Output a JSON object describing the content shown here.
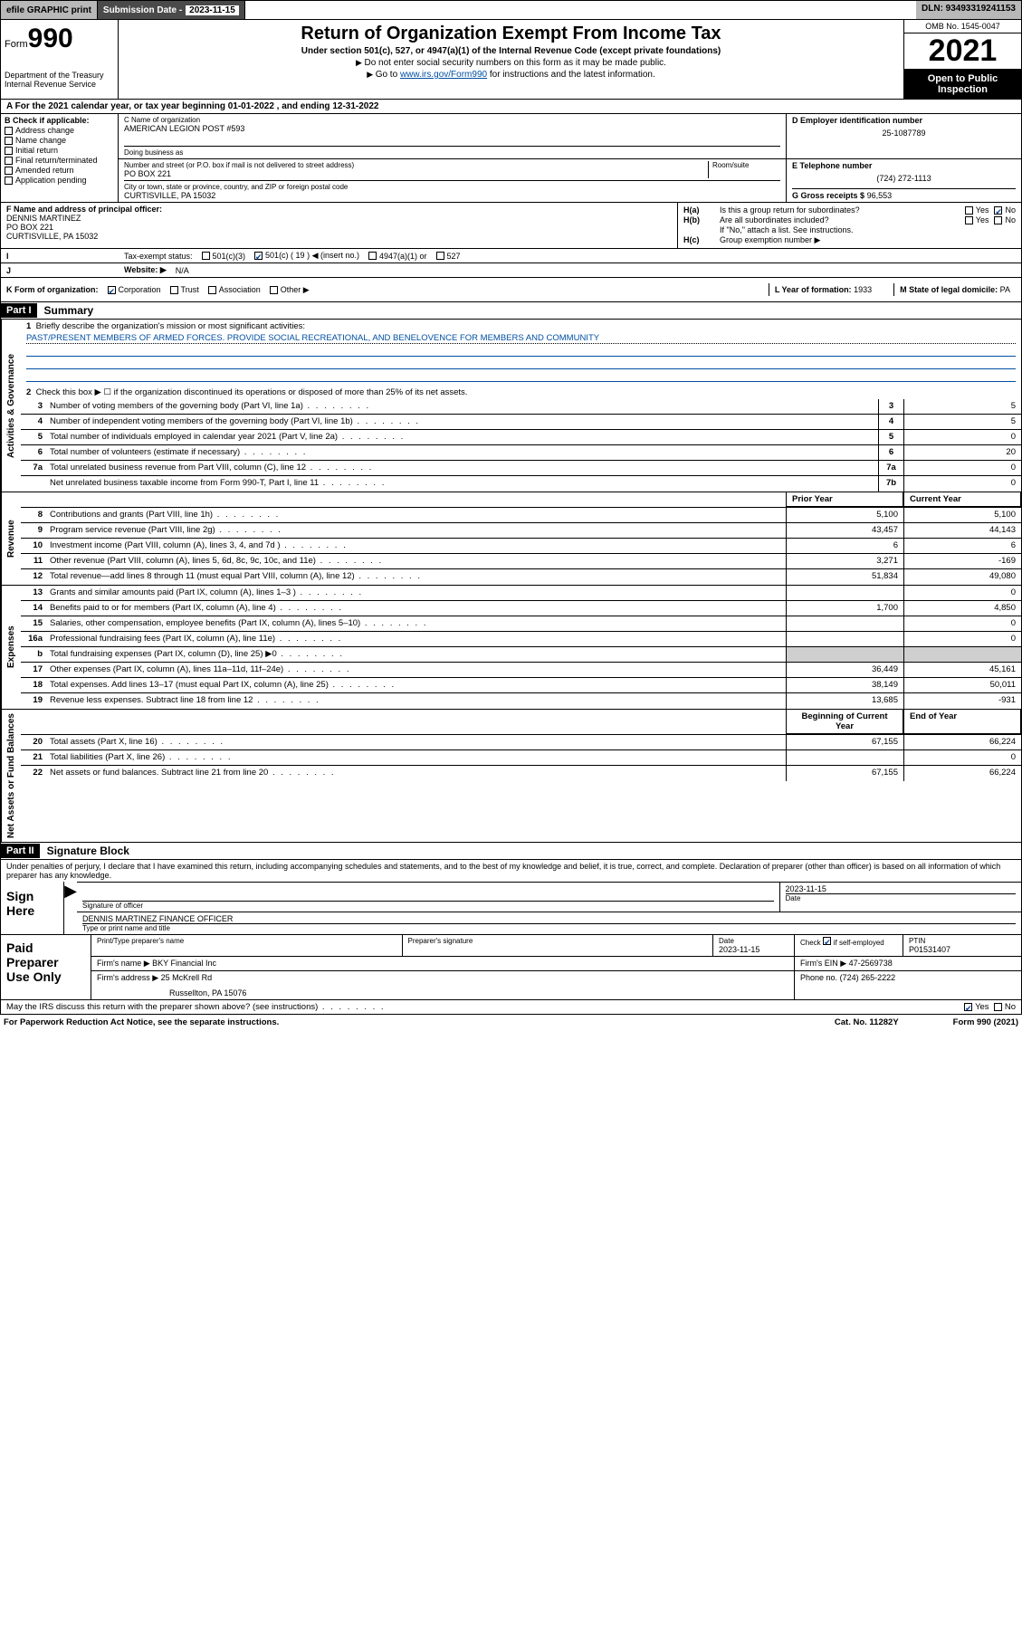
{
  "colors": {
    "link": "#004fa3",
    "black": "#000000",
    "grey_bar": "#b8b8b8",
    "grey_shade": "#cfcfcf",
    "check_blue": "#0040a0"
  },
  "topbar": {
    "efile": "efile GRAPHIC print",
    "sub_label": "Submission Date - ",
    "sub_date": "2023-11-15",
    "dln": "DLN: 93493319241153"
  },
  "header": {
    "form_word": "Form",
    "form_num": "990",
    "dept": "Department of the Treasury",
    "irs": "Internal Revenue Service",
    "title": "Return of Organization Exempt From Income Tax",
    "sub": "Under section 501(c), 527, or 4947(a)(1) of the Internal Revenue Code (except private foundations)",
    "note1": "Do not enter social security numbers on this form as it may be made public.",
    "note2_pre": "Go to ",
    "note2_link": "www.irs.gov/Form990",
    "note2_post": " for instructions and the latest information.",
    "omb": "OMB No. 1545-0047",
    "year": "2021",
    "open": "Open to Public Inspection"
  },
  "row_a": {
    "text": "A For the 2021 calendar year, or tax year beginning 01-01-2022   , and ending 12-31-2022"
  },
  "col_b": {
    "label": "B Check if applicable:",
    "items": [
      "Address change",
      "Name change",
      "Initial return",
      "Final return/terminated",
      "Amended return",
      "Application pending"
    ]
  },
  "col_c": {
    "name_lbl": "C Name of organization",
    "name": "AMERICAN LEGION POST #593",
    "dba_lbl": "Doing business as",
    "addr_lbl": "Number and street (or P.O. box if mail is not delivered to street address)",
    "room_lbl": "Room/suite",
    "addr": "PO BOX 221",
    "city_lbl": "City or town, state or province, country, and ZIP or foreign postal code",
    "city": "CURTISVILLE, PA  15032"
  },
  "col_d": {
    "ein_lbl": "D Employer identification number",
    "ein": "25-1087789",
    "tel_lbl": "E Telephone number",
    "tel": "(724) 272-1113",
    "gross_lbl": "G Gross receipts $",
    "gross": "96,553"
  },
  "row_f": {
    "lbl": "F  Name and address of principal officer:",
    "name": "DENNIS MARTINEZ",
    "addr1": "PO BOX 221",
    "addr2": "CURTISVILLE, PA  15032",
    "ha": "Is this a group return for subordinates?",
    "hb": "Are all subordinates included?",
    "hb_note": "If \"No,\" attach a list. See instructions.",
    "hc": "Group exemption number ▶",
    "ha_yes": "Yes",
    "ha_no": "No",
    "hb_yes": "Yes",
    "hb_no": "No"
  },
  "row_i": {
    "lbl": "Tax-exempt status:",
    "opts": [
      "501(c)(3)",
      "501(c) ( 19 ) ◀ (insert no.)",
      "4947(a)(1) or",
      "527"
    ]
  },
  "row_j": {
    "lbl": "Website: ▶",
    "val": "N/A"
  },
  "row_k": {
    "lbl": "K Form of organization:",
    "opts": [
      "Corporation",
      "Trust",
      "Association",
      "Other ▶"
    ],
    "l_lbl": "L Year of formation:",
    "l_val": "1933",
    "m_lbl": "M State of legal domicile:",
    "m_val": "PA"
  },
  "part1": {
    "tag": "Part I",
    "title": "Summary"
  },
  "mission": {
    "lbl": "Briefly describe the organization's mission or most significant activities:",
    "text": "PAST/PRESENT MEMBERS OF ARMED FORCES. PROVIDE SOCIAL RECREATIONAL, AND BENELOVENCE FOR MEMBERS AND COMMUNITY"
  },
  "line2": "Check this box ▶ ☐  if the organization discontinued its operations or disposed of more than 25% of its net assets.",
  "gov": [
    {
      "n": "3",
      "t": "Number of voting members of the governing body (Part VI, line 1a)",
      "b": "3",
      "v": "5"
    },
    {
      "n": "4",
      "t": "Number of independent voting members of the governing body (Part VI, line 1b)",
      "b": "4",
      "v": "5"
    },
    {
      "n": "5",
      "t": "Total number of individuals employed in calendar year 2021 (Part V, line 2a)",
      "b": "5",
      "v": "0"
    },
    {
      "n": "6",
      "t": "Total number of volunteers (estimate if necessary)",
      "b": "6",
      "v": "20"
    },
    {
      "n": "7a",
      "t": "Total unrelated business revenue from Part VIII, column (C), line 12",
      "b": "7a",
      "v": "0"
    },
    {
      "n": "",
      "t": "Net unrelated business taxable income from Form 990-T, Part I, line 11",
      "b": "7b",
      "v": "0"
    }
  ],
  "col_hdr": {
    "prior": "Prior Year",
    "curr": "Current Year",
    "beg": "Beginning of Current Year",
    "end": "End of Year"
  },
  "rev": [
    {
      "n": "8",
      "t": "Contributions and grants (Part VIII, line 1h)",
      "p": "5,100",
      "c": "5,100"
    },
    {
      "n": "9",
      "t": "Program service revenue (Part VIII, line 2g)",
      "p": "43,457",
      "c": "44,143"
    },
    {
      "n": "10",
      "t": "Investment income (Part VIII, column (A), lines 3, 4, and 7d )",
      "p": "6",
      "c": "6"
    },
    {
      "n": "11",
      "t": "Other revenue (Part VIII, column (A), lines 5, 6d, 8c, 9c, 10c, and 11e)",
      "p": "3,271",
      "c": "-169"
    },
    {
      "n": "12",
      "t": "Total revenue—add lines 8 through 11 (must equal Part VIII, column (A), line 12)",
      "p": "51,834",
      "c": "49,080"
    }
  ],
  "exp": [
    {
      "n": "13",
      "t": "Grants and similar amounts paid (Part IX, column (A), lines 1–3 )",
      "p": "",
      "c": "0"
    },
    {
      "n": "14",
      "t": "Benefits paid to or for members (Part IX, column (A), line 4)",
      "p": "1,700",
      "c": "4,850"
    },
    {
      "n": "15",
      "t": "Salaries, other compensation, employee benefits (Part IX, column (A), lines 5–10)",
      "p": "",
      "c": "0"
    },
    {
      "n": "16a",
      "t": "Professional fundraising fees (Part IX, column (A), line 11e)",
      "p": "",
      "c": "0"
    },
    {
      "n": "b",
      "t": "Total fundraising expenses (Part IX, column (D), line 25) ▶0",
      "p": "shade",
      "c": "shade"
    },
    {
      "n": "17",
      "t": "Other expenses (Part IX, column (A), lines 11a–11d, 11f–24e)",
      "p": "36,449",
      "c": "45,161"
    },
    {
      "n": "18",
      "t": "Total expenses. Add lines 13–17 (must equal Part IX, column (A), line 25)",
      "p": "38,149",
      "c": "50,011"
    },
    {
      "n": "19",
      "t": "Revenue less expenses. Subtract line 18 from line 12",
      "p": "13,685",
      "c": "-931"
    }
  ],
  "net": [
    {
      "n": "20",
      "t": "Total assets (Part X, line 16)",
      "p": "67,155",
      "c": "66,224"
    },
    {
      "n": "21",
      "t": "Total liabilities (Part X, line 26)",
      "p": "",
      "c": "0"
    },
    {
      "n": "22",
      "t": "Net assets or fund balances. Subtract line 21 from line 20",
      "p": "67,155",
      "c": "66,224"
    }
  ],
  "side": {
    "gov": "Activities & Governance",
    "rev": "Revenue",
    "exp": "Expenses",
    "net": "Net Assets or Fund Balances"
  },
  "part2": {
    "tag": "Part II",
    "title": "Signature Block"
  },
  "sig": {
    "decl": "Under penalties of perjury, I declare that I have examined this return, including accompanying schedules and statements, and to the best of my knowledge and belief, it is true, correct, and complete. Declaration of preparer (other than officer) is based on all information of which preparer has any knowledge.",
    "sign_here": "Sign Here",
    "sig_of": "Signature of officer",
    "date_lbl": "Date",
    "date": "2023-11-15",
    "name": "DENNIS MARTINEZ  FINANCE OFFICER",
    "name_lbl": "Type or print name and title"
  },
  "prep": {
    "label": "Paid Preparer Use Only",
    "h1": "Print/Type preparer's name",
    "h2": "Preparer's signature",
    "h3_lbl": "Date",
    "h3": "2023-11-15",
    "h4_lbl": "Check",
    "h4_txt": "if self-employed",
    "h5_lbl": "PTIN",
    "h5": "P01531407",
    "firm_name_lbl": "Firm's name    ▶",
    "firm_name": "BKY Financial Inc",
    "firm_ein_lbl": "Firm's EIN ▶",
    "firm_ein": "47-2569738",
    "firm_addr_lbl": "Firm's address ▶",
    "firm_addr1": "25 McKrell Rd",
    "firm_addr2": "Russellton, PA  15076",
    "phone_lbl": "Phone no.",
    "phone": "(724) 265-2222"
  },
  "may": {
    "txt": "May the IRS discuss this return with the preparer shown above? (see instructions)",
    "yes": "Yes",
    "no": "No"
  },
  "footer": {
    "l": "For Paperwork Reduction Act Notice, see the separate instructions.",
    "m": "Cat. No. 11282Y",
    "r": "Form 990 (2021)"
  }
}
